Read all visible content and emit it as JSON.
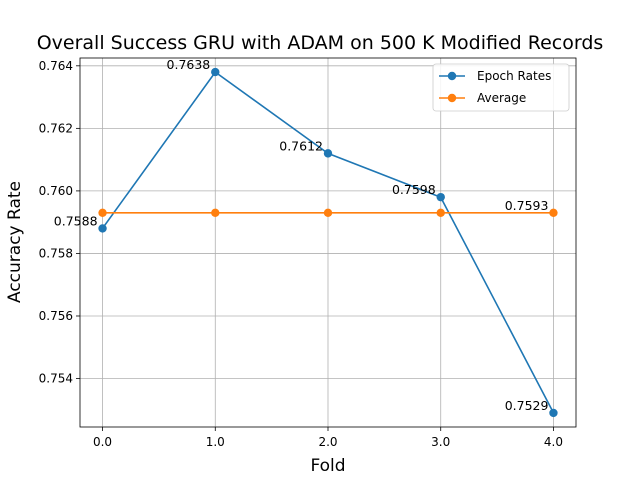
{
  "chart_data": {
    "type": "line",
    "title": "Overall Success GRU with ADAM on 500 K Modified Records",
    "xlabel": "Fold",
    "ylabel": "Accuracy Rate",
    "x": [
      0,
      1,
      2,
      3,
      4
    ],
    "xticks": [
      "0.0",
      "1.0",
      "2.0",
      "3.0",
      "4.0"
    ],
    "yticks": [
      "0.754",
      "0.756",
      "0.758",
      "0.760",
      "0.762",
      "0.764"
    ],
    "xlim": [
      -0.2,
      4.2
    ],
    "ylim": [
      0.75245,
      0.76425
    ],
    "grid": true,
    "legend": "top-right",
    "series": [
      {
        "name": "Epoch Rates",
        "color": "#1f77b4",
        "values": [
          0.7588,
          0.7638,
          0.7612,
          0.7598,
          0.7529
        ],
        "labels": [
          "0.7588",
          "0.7638",
          "0.7612",
          "0.7598",
          "0.7529"
        ]
      },
      {
        "name": "Average",
        "color": "#ff7f0e",
        "values": [
          0.7593,
          0.7593,
          0.7593,
          0.7593,
          0.7593
        ],
        "labels": [
          "",
          "",
          "",
          "",
          "0.7593"
        ]
      }
    ]
  }
}
